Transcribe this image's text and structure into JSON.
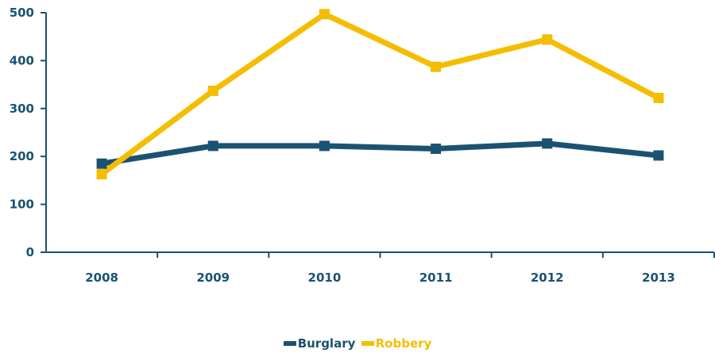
{
  "chart_data": {
    "type": "line",
    "categories": [
      "2008",
      "2009",
      "2010",
      "2011",
      "2012",
      "2013"
    ],
    "series": [
      {
        "name": "Burglary",
        "values": [
          185,
          222,
          222,
          216,
          227,
          202
        ],
        "color": "#1b5272"
      },
      {
        "name": "Robbery",
        "values": [
          163,
          337,
          497,
          387,
          444,
          322
        ],
        "color": "#f5bd02"
      }
    ],
    "title": "",
    "xlabel": "",
    "ylabel": "",
    "ylim": [
      0,
      500
    ],
    "yticks": [
      "0",
      "100",
      "200",
      "300",
      "400",
      "500"
    ],
    "grid": false,
    "legend_position": "bottom-center",
    "axis_color": "#1b5272"
  }
}
